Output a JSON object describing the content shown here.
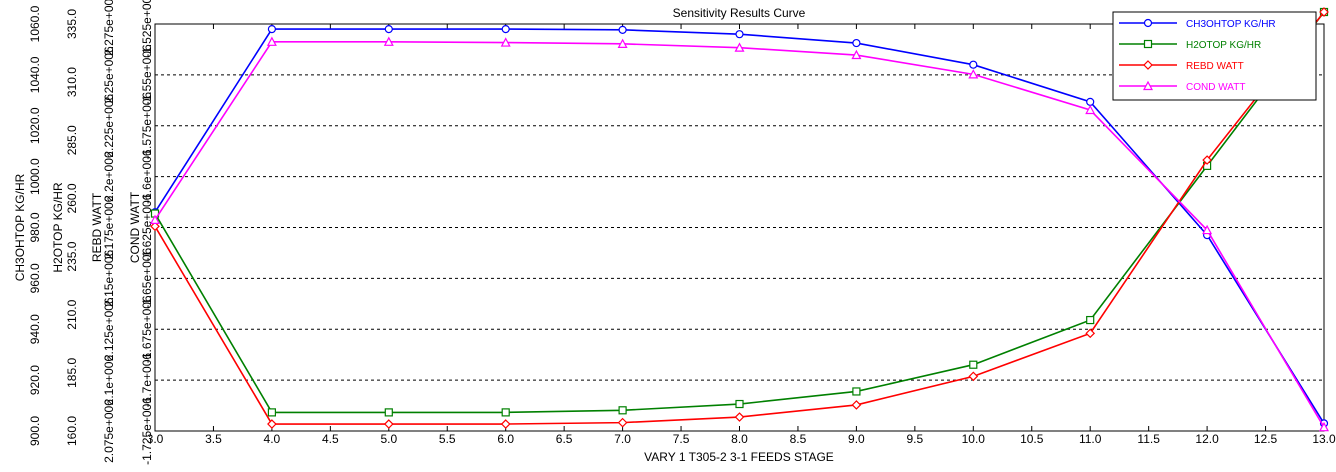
{
  "chart_data": {
    "type": "line",
    "title": "Sensitivity Results Curve",
    "xlabel": "VARY   1 T305-2 3-1 FEEDS STAGE",
    "xlim": [
      3.0,
      13.0
    ],
    "x_ticks": [
      "3.0",
      "3.5",
      "4.0",
      "4.5",
      "5.0",
      "5.5",
      "6.0",
      "6.5",
      "7.0",
      "7.5",
      "8.0",
      "8.5",
      "9.0",
      "9.5",
      "10.0",
      "10.5",
      "11.0",
      "11.5",
      "12.0",
      "12.5",
      "13.0"
    ],
    "x": [
      3,
      4,
      5,
      6,
      7,
      8,
      9,
      10,
      11,
      12,
      13
    ],
    "grid": "horizontal-dashed",
    "legend_position": "top-right",
    "axes": [
      {
        "label": "CH3OHTOP KG/HR",
        "range": [
          900,
          1060
        ],
        "ticks": [
          "900.0",
          "920.0",
          "940.0",
          "960.0",
          "980.0",
          "1000.0",
          "1020.0",
          "1040.0",
          "1060.0"
        ]
      },
      {
        "label": "H2OTOP KG/HR",
        "range": [
          160,
          335
        ],
        "ticks": [
          "160.0",
          "185.0",
          "210.0",
          "235.0",
          "260.0",
          "285.0",
          "310.0",
          "335.0"
        ]
      },
      {
        "label": "REBD WATT",
        "tick_count": 9,
        "ticks": [
          "2.075e+006",
          "2.1e+006",
          "2.125e+006",
          "2.15e+006",
          "2.175e+006",
          "2.2e+006",
          "2.225e+006",
          "2.25e+006",
          "2.275e+006"
        ]
      },
      {
        "label": "COND WATT",
        "tick_count": 9,
        "ticks": [
          "-1.725e+006",
          "-1.7e+006",
          "-1.675e+006",
          "-1.65e+006",
          "-1.625e+006",
          "-1.6e+006",
          "-1.575e+006",
          "-1.55e+006",
          "-1.525e+006"
        ]
      }
    ],
    "series": [
      {
        "name": "CH3OHTOP KG/HR",
        "color": "#0000ff",
        "marker": "circle",
        "axis": 0,
        "values": [
          986,
          1058,
          1058,
          1058,
          1057.7,
          1056,
          1052.5,
          1044,
          1029.4,
          977,
          903
        ]
      },
      {
        "name": "H2OTOP KG/HR",
        "color": "#008000",
        "marker": "square",
        "axis": 1,
        "values": [
          253.5,
          168,
          168,
          168,
          168.9,
          171.6,
          177,
          188.5,
          207.7,
          274,
          347.7
        ]
      },
      {
        "name": "REBD WATT",
        "color": "#ff0000",
        "marker": "diamond",
        "axis": 1,
        "values": [
          248,
          163,
          163,
          163,
          163.6,
          166,
          171.2,
          183.5,
          202,
          276.5,
          345.5
        ]
      },
      {
        "name": "COND WATT",
        "color": "#ff00ff",
        "marker": "triangle",
        "axis": 0,
        "values": [
          983,
          1053,
          1053,
          1052.7,
          1052.2,
          1050.7,
          1047.8,
          1040.2,
          1026.2,
          979,
          901.5
        ]
      }
    ]
  }
}
